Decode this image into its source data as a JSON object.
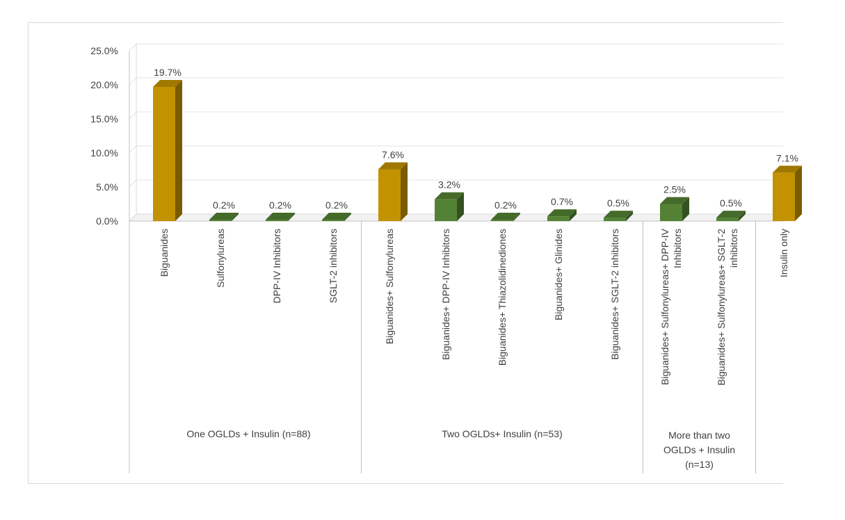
{
  "chart_data": {
    "type": "bar",
    "title": "",
    "xlabel": "",
    "ylabel": "",
    "ylim": [
      0,
      25
    ],
    "yticks": [
      "0.0%",
      "5.0%",
      "10.0%",
      "15.0%",
      "20.0%",
      "25.0%"
    ],
    "grid": true,
    "categories": [
      {
        "label": [
          "Biguanides"
        ],
        "value": 19.7,
        "display": "19.7%",
        "color": "#c39200",
        "group": 0
      },
      {
        "label": [
          "Sulfonylureas"
        ],
        "value": 0.2,
        "display": "0.2%",
        "color": "#548235",
        "group": 0
      },
      {
        "label": [
          "DPP-IV Inhibitors"
        ],
        "value": 0.2,
        "display": "0.2%",
        "color": "#548235",
        "group": 0
      },
      {
        "label": [
          "SGLT-2 inhibitors"
        ],
        "value": 0.2,
        "display": "0.2%",
        "color": "#548235",
        "group": 0
      },
      {
        "label": [
          "Biguanides+ Sulfonylureas"
        ],
        "value": 7.6,
        "display": "7.6%",
        "color": "#c39200",
        "group": 1
      },
      {
        "label": [
          "Biguanides+ DPP-IV Inhibitors"
        ],
        "value": 3.2,
        "display": "3.2%",
        "color": "#548235",
        "group": 1
      },
      {
        "label": [
          "Biguanides+ Thiazolidinediones"
        ],
        "value": 0.2,
        "display": "0.2%",
        "color": "#548235",
        "group": 1
      },
      {
        "label": [
          "Biguanides+ Glinides"
        ],
        "value": 0.7,
        "display": "0.7%",
        "color": "#548235",
        "group": 1
      },
      {
        "label": [
          "Biguanides+ SGLT-2 inhibitors"
        ],
        "value": 0.5,
        "display": "0.5%",
        "color": "#548235",
        "group": 1
      },
      {
        "label": [
          "Biguanides+ Sulfonylureas+ DPP-IV",
          "Inhibitors"
        ],
        "value": 2.5,
        "display": "2.5%",
        "color": "#548235",
        "group": 2
      },
      {
        "label": [
          "Biguanides+ Sulfonylureas+ SGLT-2",
          "inhibitors"
        ],
        "value": 0.5,
        "display": "0.5%",
        "color": "#548235",
        "group": 2
      },
      {
        "label": [
          "Insulin only"
        ],
        "value": 7.1,
        "display": "7.1%",
        "color": "#c39200",
        "group": 3
      }
    ],
    "groups": [
      {
        "label": [
          "One OGLDs + Insulin (n=88)"
        ]
      },
      {
        "label": [
          "Two OGLDs+ Insulin (n=53)"
        ]
      },
      {
        "label": [
          "More than two",
          "OGLDs + Insulin",
          "(n=13)"
        ]
      },
      {
        "label": [
          ""
        ]
      }
    ]
  }
}
